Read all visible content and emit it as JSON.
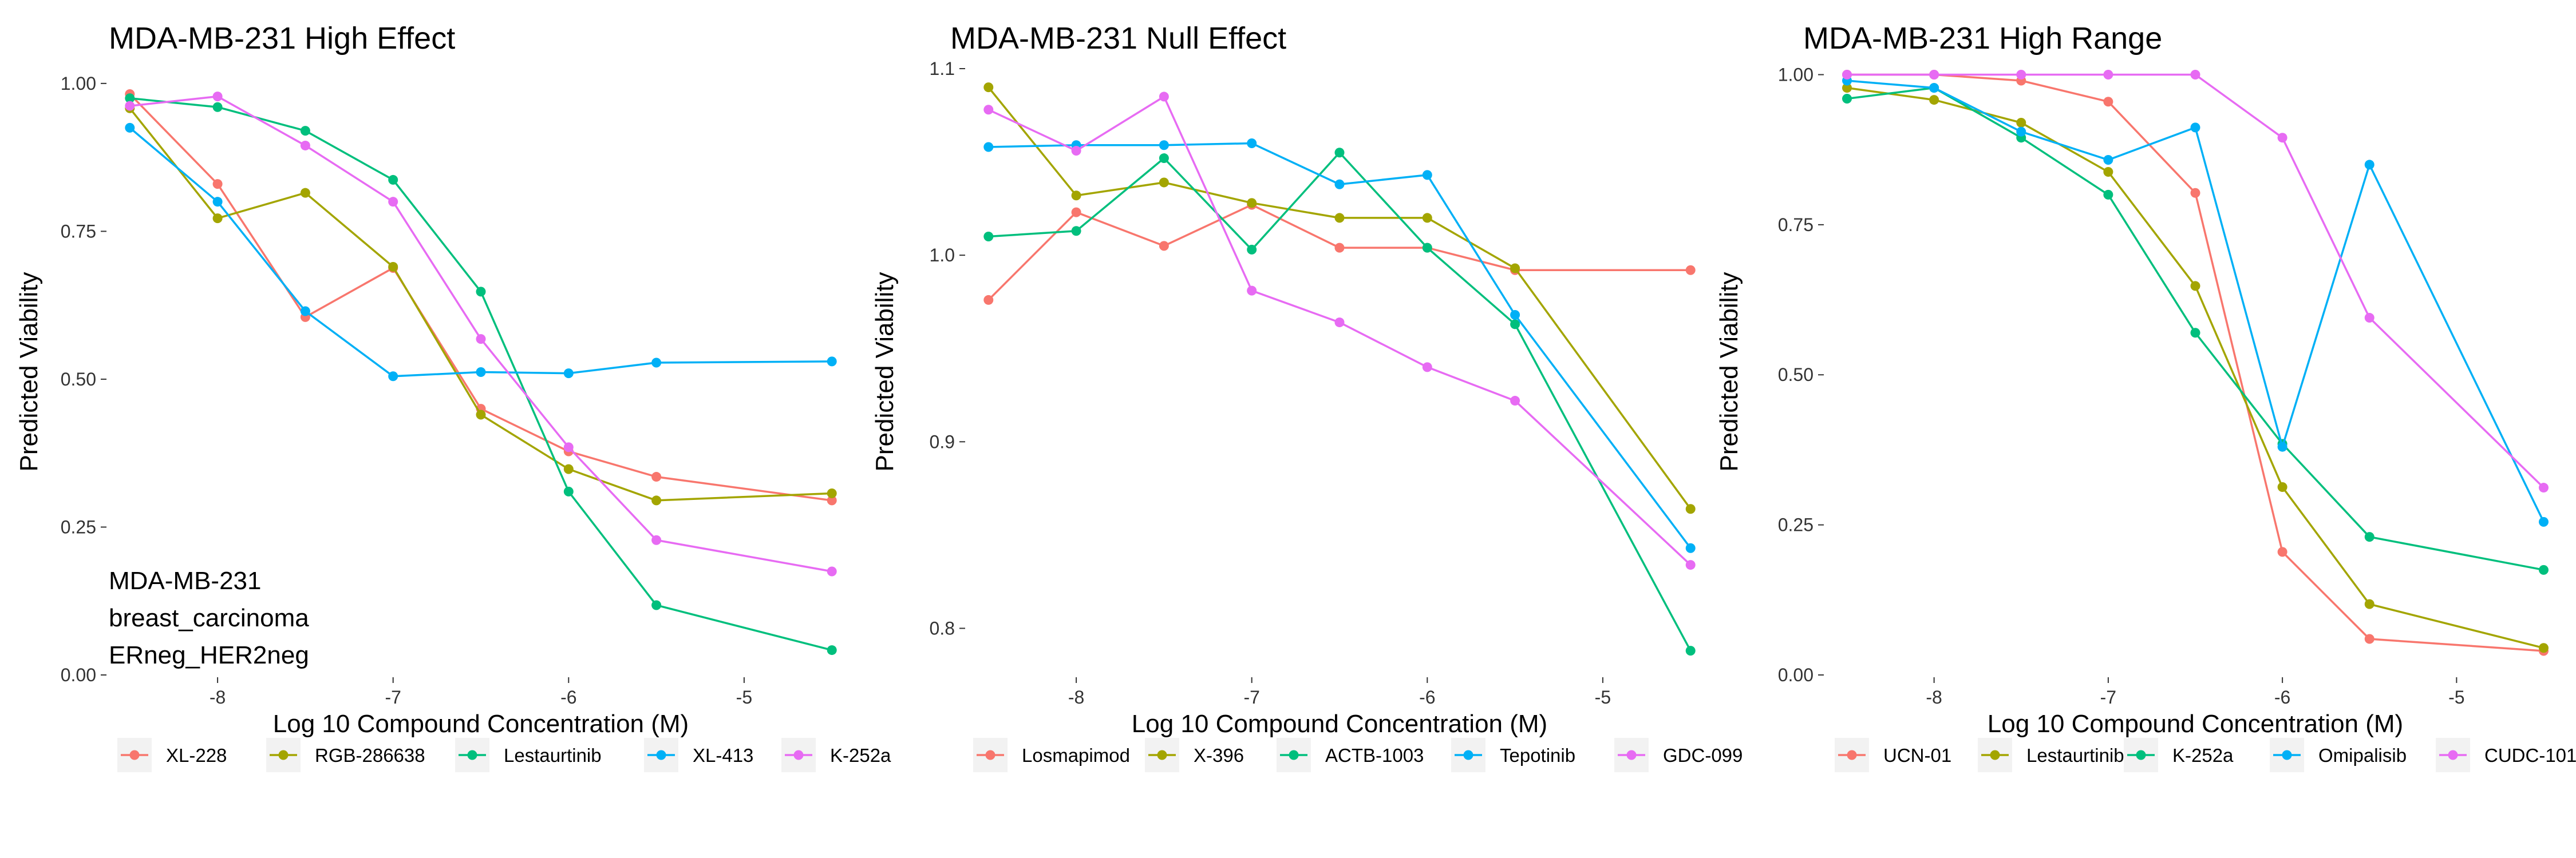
{
  "chart_data": [
    {
      "type": "line",
      "title": "MDA-MB-231 High Effect",
      "xlabel": "Log 10 Compound Concentration (M)",
      "ylabel": "Predicted Viability",
      "xlim": [
        -8.62,
        -4.38
      ],
      "ylim": [
        0.0,
        1.025
      ],
      "x": [
        -8.5,
        -8.0,
        -7.5,
        -7.0,
        -6.5,
        -6.0,
        -5.5,
        -4.5
      ],
      "xticks": [
        -8,
        -7,
        -6,
        -5
      ],
      "yticks": [
        0.0,
        0.25,
        0.5,
        0.75,
        1.0
      ],
      "ytick_labels": [
        "0.00",
        "0.25",
        "0.50",
        "0.75",
        "1.00"
      ],
      "series": [
        {
          "name": "XL-228",
          "color": "#F8766D",
          "values": [
            0.982,
            0.83,
            0.605,
            0.688,
            0.45,
            0.378,
            0.335,
            0.295
          ]
        },
        {
          "name": "RGB-286638",
          "color": "#A3A500",
          "values": [
            0.958,
            0.772,
            0.815,
            0.69,
            0.44,
            0.348,
            0.295,
            0.307
          ]
        },
        {
          "name": "Lestaurtinib",
          "color": "#00BF7D",
          "values": [
            0.975,
            0.96,
            0.92,
            0.837,
            0.648,
            0.31,
            0.118,
            0.042
          ]
        },
        {
          "name": "XL-413",
          "color": "#00B0F6",
          "values": [
            0.925,
            0.8,
            0.615,
            0.505,
            0.512,
            0.51,
            0.528,
            0.53
          ]
        },
        {
          "name": "K-252a",
          "color": "#E76BF3",
          "values": [
            0.962,
            0.978,
            0.895,
            0.8,
            0.568,
            0.385,
            0.228,
            0.175
          ]
        }
      ],
      "annotation": [
        "MDA-MB-231",
        "breast_carcinoma",
        "ERneg_HER2neg"
      ],
      "grid": false,
      "legend_position": "bottom"
    },
    {
      "type": "line",
      "title": "MDA-MB-231 Null Effect",
      "xlabel": "Log 10 Compound Concentration (M)",
      "ylabel": "Predicted Viability",
      "xlim": [
        -8.62,
        -4.38
      ],
      "ylim": [
        0.775,
        1.1
      ],
      "x": [
        -8.5,
        -8.0,
        -7.5,
        -7.0,
        -6.5,
        -6.0,
        -5.5,
        -4.5
      ],
      "xticks": [
        -8,
        -7,
        -6,
        -5
      ],
      "yticks": [
        0.8,
        0.9,
        1.0,
        1.1
      ],
      "ytick_labels": [
        "0.8",
        "0.9",
        "1.0",
        "1.1"
      ],
      "series": [
        {
          "name": "Losmapimod",
          "color": "#F8766D",
          "values": [
            0.976,
            1.023,
            1.005,
            1.027,
            1.004,
            1.004,
            0.992,
            0.992
          ]
        },
        {
          "name": "X-396",
          "color": "#A3A500",
          "values": [
            1.09,
            1.032,
            1.039,
            1.028,
            1.02,
            1.02,
            0.993,
            0.864
          ]
        },
        {
          "name": "ACTB-1003",
          "color": "#00BF7D",
          "values": [
            1.01,
            1.013,
            1.052,
            1.003,
            1.055,
            1.004,
            0.963,
            0.788
          ]
        },
        {
          "name": "Tepotinib",
          "color": "#00B0F6",
          "values": [
            1.058,
            1.059,
            1.059,
            1.06,
            1.038,
            1.043,
            0.968,
            0.843
          ]
        },
        {
          "name": "GDC-099",
          "color": "#E76BF3",
          "values": [
            1.078,
            1.056,
            1.085,
            0.981,
            0.964,
            0.94,
            0.922,
            0.834
          ]
        }
      ],
      "grid": false,
      "legend_position": "bottom"
    },
    {
      "type": "line",
      "title": "MDA-MB-231 High Range",
      "xlabel": "Log 10 Compound Concentration (M)",
      "ylabel": "Predicted Viability",
      "xlim": [
        -8.62,
        -4.38
      ],
      "ylim": [
        0.0,
        1.01
      ],
      "x": [
        -8.5,
        -8.0,
        -7.5,
        -7.0,
        -6.5,
        -6.0,
        -5.5,
        -4.5
      ],
      "xticks": [
        -8,
        -7,
        -6,
        -5
      ],
      "yticks": [
        0.0,
        0.25,
        0.5,
        0.75,
        1.0
      ],
      "ytick_labels": [
        "0.00",
        "0.25",
        "0.50",
        "0.75",
        "1.00"
      ],
      "series": [
        {
          "name": "UCN-01",
          "color": "#F8766D",
          "values": [
            1.0,
            1.0,
            0.99,
            0.955,
            0.803,
            0.205,
            0.06,
            0.04
          ]
        },
        {
          "name": "Lestaurtinib",
          "color": "#A3A500",
          "values": [
            0.978,
            0.958,
            0.92,
            0.838,
            0.648,
            0.313,
            0.118,
            0.045
          ]
        },
        {
          "name": "K-252a",
          "color": "#00BF7D",
          "values": [
            0.96,
            0.978,
            0.895,
            0.8,
            0.57,
            0.385,
            0.23,
            0.175
          ]
        },
        {
          "name": "Omipalisib",
          "color": "#00B0F6",
          "values": [
            0.99,
            0.978,
            0.905,
            0.858,
            0.912,
            0.38,
            0.85,
            0.255
          ]
        },
        {
          "name": "CUDC-101",
          "color": "#E76BF3",
          "values": [
            1.0,
            1.0,
            1.0,
            1.0,
            1.0,
            0.895,
            0.595,
            0.312
          ]
        }
      ],
      "grid": false,
      "legend_position": "bottom"
    }
  ]
}
